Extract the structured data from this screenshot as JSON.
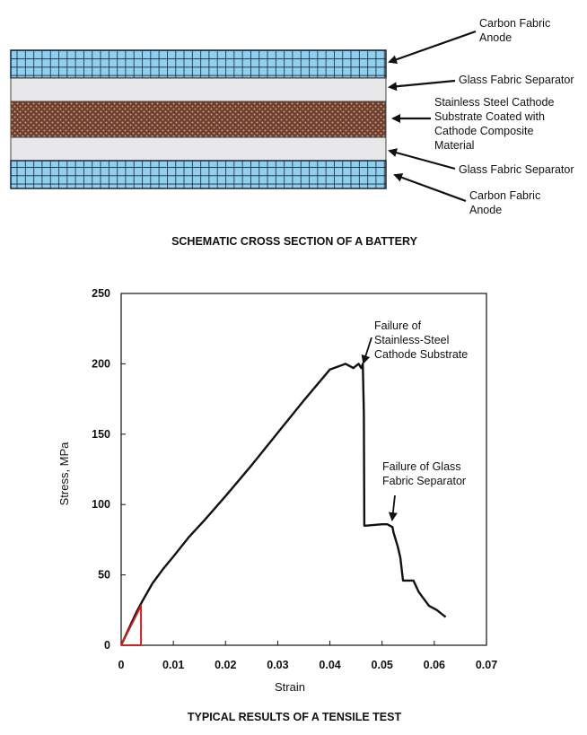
{
  "schematic": {
    "caption": "SCHEMATIC CROSS SECTION OF A BATTERY",
    "layers": [
      {
        "name": "carbon-fabric-anode-top",
        "fill": "#8fd0ee",
        "grid": "#1a2233"
      },
      {
        "name": "glass-fabric-separator-top",
        "fill": "#e8e8ea"
      },
      {
        "name": "cathode-layer",
        "fill": "#7a4a36"
      },
      {
        "name": "glass-fabric-separator-bottom",
        "fill": "#e8e8ea"
      },
      {
        "name": "carbon-fabric-anode-bottom",
        "fill": "#8fd0ee",
        "grid": "#1a2233"
      }
    ],
    "labels": [
      {
        "lines": [
          "Carbon Fabric",
          "Anode"
        ]
      },
      {
        "lines": [
          "Glass Fabric Separator"
        ]
      },
      {
        "lines": [
          "Stainless Steel Cathode",
          "Substrate Coated with",
          "Cathode Composite",
          "Material"
        ]
      },
      {
        "lines": [
          "Glass Fabric Separator"
        ]
      },
      {
        "lines": [
          "Carbon Fabric",
          "Anode"
        ]
      }
    ]
  },
  "chart_data": {
    "type": "line",
    "caption": "TYPICAL RESULTS OF A TENSILE TEST",
    "xlabel": "Strain",
    "ylabel": "Stress, MPa",
    "xlim": [
      0,
      0.07
    ],
    "ylim": [
      0,
      250
    ],
    "xticks": [
      "0",
      "0.01",
      "0.02",
      "0.03",
      "0.04",
      "0.05",
      "0.06",
      "0.07"
    ],
    "yticks": [
      "0",
      "50",
      "100",
      "150",
      "200",
      "250"
    ],
    "series": [
      {
        "name": "Stress-strain curve",
        "color": "#111111",
        "x": [
          0,
          0.001,
          0.002,
          0.003,
          0.004,
          0.006,
          0.008,
          0.01,
          0.013,
          0.016,
          0.02,
          0.025,
          0.03,
          0.035,
          0.04,
          0.043,
          0.0445,
          0.0455,
          0.046,
          0.0463,
          0.0465,
          0.0466,
          0.047,
          0.05,
          0.051,
          0.052,
          0.0522,
          0.053,
          0.0535,
          0.054,
          0.055,
          0.056,
          0.0565,
          0.057,
          0.058,
          0.059,
          0.0605,
          0.0615,
          0.0622
        ],
        "y": [
          0,
          8,
          16,
          24,
          31,
          44,
          54,
          63,
          77,
          89,
          106,
          128,
          151,
          174,
          196,
          200,
          197,
          200,
          197,
          200,
          165,
          85,
          85,
          86,
          86,
          84,
          80,
          70,
          62,
          46,
          46,
          46,
          42,
          38,
          33,
          28,
          25,
          22,
          20
        ]
      },
      {
        "name": "Initial slope triangle",
        "color": "#cc2222",
        "x": [
          0,
          0.0038,
          0.0038,
          0
        ],
        "y": [
          0,
          28,
          0,
          0
        ]
      }
    ],
    "annotations": [
      {
        "lines": [
          "Failure of",
          "Stainless-Steel",
          "Cathode Substrate"
        ],
        "x": 0.0465,
        "y": 200
      },
      {
        "lines": [
          "Failure of Glass",
          "Fabric Separator"
        ],
        "x": 0.052,
        "y": 86
      }
    ]
  }
}
